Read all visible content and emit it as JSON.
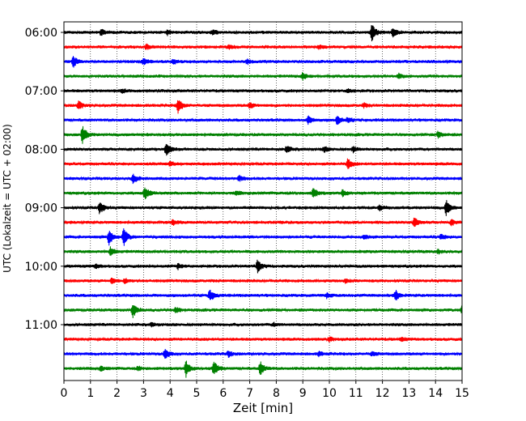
{
  "chart_data": {
    "type": "line",
    "xlabel": "Zeit  [min]",
    "ylabel": "UTC (Lokalzeit = UTC + 02:00)",
    "xlim": [
      0,
      15
    ],
    "x_ticks": [
      "0",
      "1",
      "2",
      "3",
      "4",
      "5",
      "6",
      "7",
      "8",
      "9",
      "10",
      "11",
      "12",
      "13",
      "14",
      "15"
    ],
    "y_tick_labels": [
      "06:00",
      "07:00",
      "08:00",
      "09:00",
      "10:00",
      "11:00"
    ],
    "grid": "vertical dotted lines at each minute",
    "trace_colors": [
      "#000000",
      "#ff0000",
      "#0000ff",
      "#008000"
    ],
    "traces": [
      {
        "start": "06:00",
        "color": "#000000",
        "events": [
          [
            1.4,
            0.35
          ],
          [
            3.9,
            0.25
          ],
          [
            5.6,
            0.3
          ],
          [
            11.6,
            1.0
          ],
          [
            12.4,
            0.6
          ]
        ]
      },
      {
        "start": "06:15",
        "color": "#ff0000",
        "events": [
          [
            3.1,
            0.25
          ],
          [
            6.2,
            0.2
          ],
          [
            9.6,
            0.2
          ]
        ]
      },
      {
        "start": "06:30",
        "color": "#0000ff",
        "events": [
          [
            0.35,
            0.6
          ],
          [
            3.0,
            0.35
          ],
          [
            4.1,
            0.3
          ],
          [
            6.9,
            0.25
          ]
        ]
      },
      {
        "start": "06:45",
        "color": "#008000",
        "events": [
          [
            9.0,
            0.4
          ],
          [
            12.6,
            0.25
          ]
        ]
      },
      {
        "start": "07:00",
        "color": "#000000",
        "events": [
          [
            2.2,
            0.2
          ],
          [
            10.7,
            0.2
          ]
        ]
      },
      {
        "start": "07:15",
        "color": "#ff0000",
        "events": [
          [
            0.55,
            0.5
          ],
          [
            4.3,
            0.85
          ],
          [
            7.0,
            0.3
          ],
          [
            11.3,
            0.2
          ]
        ]
      },
      {
        "start": "07:30",
        "color": "#0000ff",
        "events": [
          [
            9.2,
            0.45
          ],
          [
            10.3,
            0.5
          ],
          [
            10.7,
            0.3
          ]
        ]
      },
      {
        "start": "07:45",
        "color": "#008000",
        "events": [
          [
            0.7,
            1.0
          ],
          [
            14.1,
            0.4
          ]
        ]
      },
      {
        "start": "08:00",
        "color": "#000000",
        "events": [
          [
            3.85,
            0.8
          ],
          [
            8.4,
            0.35
          ],
          [
            9.8,
            0.3
          ],
          [
            10.9,
            0.3
          ]
        ]
      },
      {
        "start": "08:15",
        "color": "#ff0000",
        "events": [
          [
            4.0,
            0.25
          ],
          [
            10.7,
            0.6
          ]
        ]
      },
      {
        "start": "08:30",
        "color": "#0000ff",
        "events": [
          [
            2.6,
            0.55
          ],
          [
            6.6,
            0.3
          ]
        ]
      },
      {
        "start": "08:45",
        "color": "#008000",
        "events": [
          [
            3.05,
            0.8
          ],
          [
            6.5,
            0.25
          ],
          [
            9.4,
            0.55
          ],
          [
            10.5,
            0.4
          ]
        ]
      },
      {
        "start": "09:00",
        "color": "#000000",
        "events": [
          [
            1.35,
            0.75
          ],
          [
            11.9,
            0.3
          ],
          [
            14.4,
            0.85
          ]
        ]
      },
      {
        "start": "09:15",
        "color": "#ff0000",
        "events": [
          [
            4.1,
            0.3
          ],
          [
            13.2,
            0.6
          ],
          [
            14.6,
            0.3
          ]
        ]
      },
      {
        "start": "09:30",
        "color": "#0000ff",
        "events": [
          [
            1.7,
            0.85
          ],
          [
            2.25,
            1.0
          ],
          [
            11.3,
            0.25
          ],
          [
            14.2,
            0.3
          ]
        ]
      },
      {
        "start": "09:45",
        "color": "#008000",
        "events": [
          [
            1.75,
            0.45
          ],
          [
            14.1,
            0.2
          ]
        ]
      },
      {
        "start": "10:00",
        "color": "#000000",
        "events": [
          [
            4.3,
            0.3
          ],
          [
            7.3,
            0.7
          ],
          [
            1.2,
            0.2
          ]
        ]
      },
      {
        "start": "10:15",
        "color": "#ff0000",
        "events": [
          [
            1.8,
            0.3
          ],
          [
            2.3,
            0.25
          ],
          [
            10.6,
            0.2
          ]
        ]
      },
      {
        "start": "10:30",
        "color": "#0000ff",
        "events": [
          [
            5.5,
            0.7
          ],
          [
            12.5,
            0.55
          ],
          [
            9.9,
            0.25
          ]
        ]
      },
      {
        "start": "10:45",
        "color": "#008000",
        "events": [
          [
            2.6,
            0.8
          ],
          [
            4.2,
            0.3
          ],
          [
            15.0,
            0.5
          ]
        ]
      },
      {
        "start": "11:00",
        "color": "#000000",
        "events": [
          [
            3.3,
            0.2
          ],
          [
            7.9,
            0.2
          ]
        ]
      },
      {
        "start": "11:15",
        "color": "#ff0000",
        "events": [
          [
            10.0,
            0.2
          ],
          [
            12.7,
            0.2
          ]
        ]
      },
      {
        "start": "11:30",
        "color": "#0000ff",
        "events": [
          [
            3.8,
            0.65
          ],
          [
            6.2,
            0.35
          ],
          [
            9.6,
            0.25
          ],
          [
            11.6,
            0.25
          ]
        ]
      },
      {
        "start": "11:45",
        "color": "#008000",
        "events": [
          [
            4.6,
            0.9
          ],
          [
            5.65,
            0.85
          ],
          [
            7.4,
            0.75
          ],
          [
            1.4,
            0.25
          ],
          [
            2.8,
            0.2
          ]
        ]
      }
    ]
  }
}
